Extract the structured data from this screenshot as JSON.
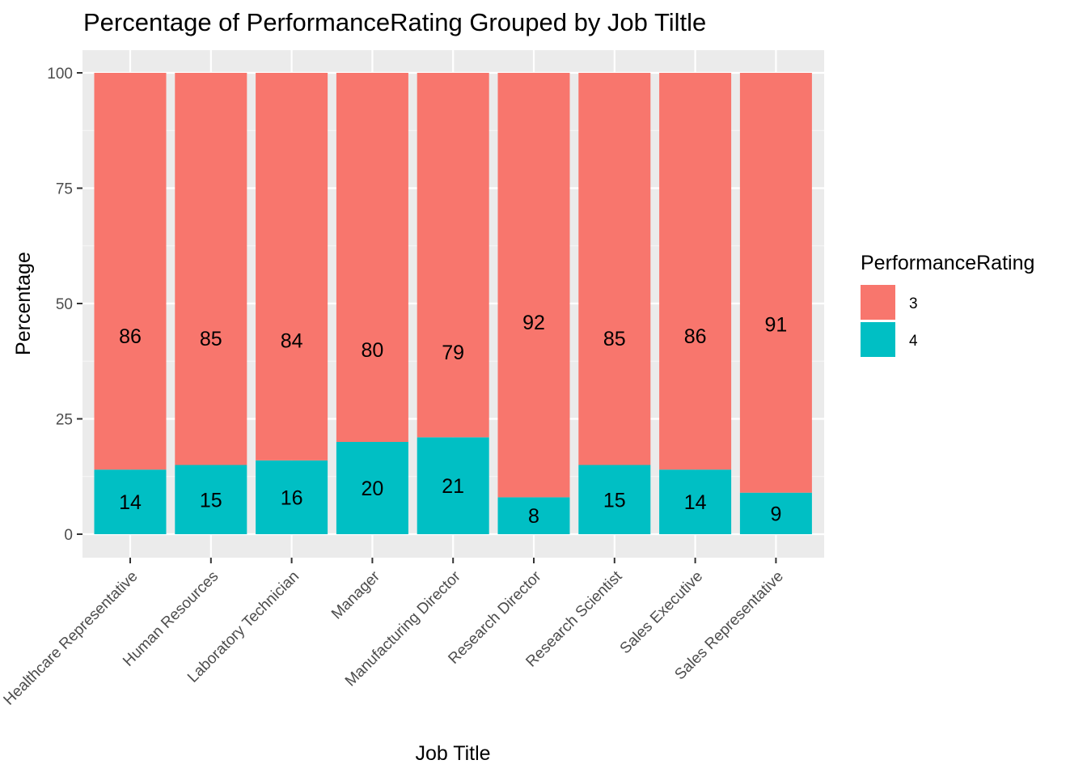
{
  "chart_data": {
    "type": "bar",
    "stacked": true,
    "title": "Percentage of PerformanceRating Grouped by Job Tiltle",
    "xlabel": "Job Title",
    "ylabel": "Percentage",
    "ylim": [
      0,
      100
    ],
    "yticks": [
      0,
      25,
      50,
      75,
      100
    ],
    "grid": true,
    "legend_position": "right",
    "legend_title": "PerformanceRating",
    "categories": [
      "Healthcare Representative",
      "Human Resources",
      "Laboratory Technician",
      "Manager",
      "Manufacturing Director",
      "Research Director",
      "Research Scientist",
      "Sales Executive",
      "Sales Representative"
    ],
    "series": [
      {
        "name": "3",
        "color": "#F8766D",
        "values": [
          86,
          85,
          84,
          80,
          79,
          92,
          85,
          86,
          91
        ]
      },
      {
        "name": "4",
        "color": "#00BFC4",
        "values": [
          14,
          15,
          16,
          20,
          21,
          8,
          15,
          14,
          9
        ]
      }
    ],
    "colors": {
      "panel": "#EBEBEB",
      "grid_major": "#FFFFFF",
      "grid_minor": "#F5F5F5",
      "tick": "#4d4d4d"
    }
  }
}
